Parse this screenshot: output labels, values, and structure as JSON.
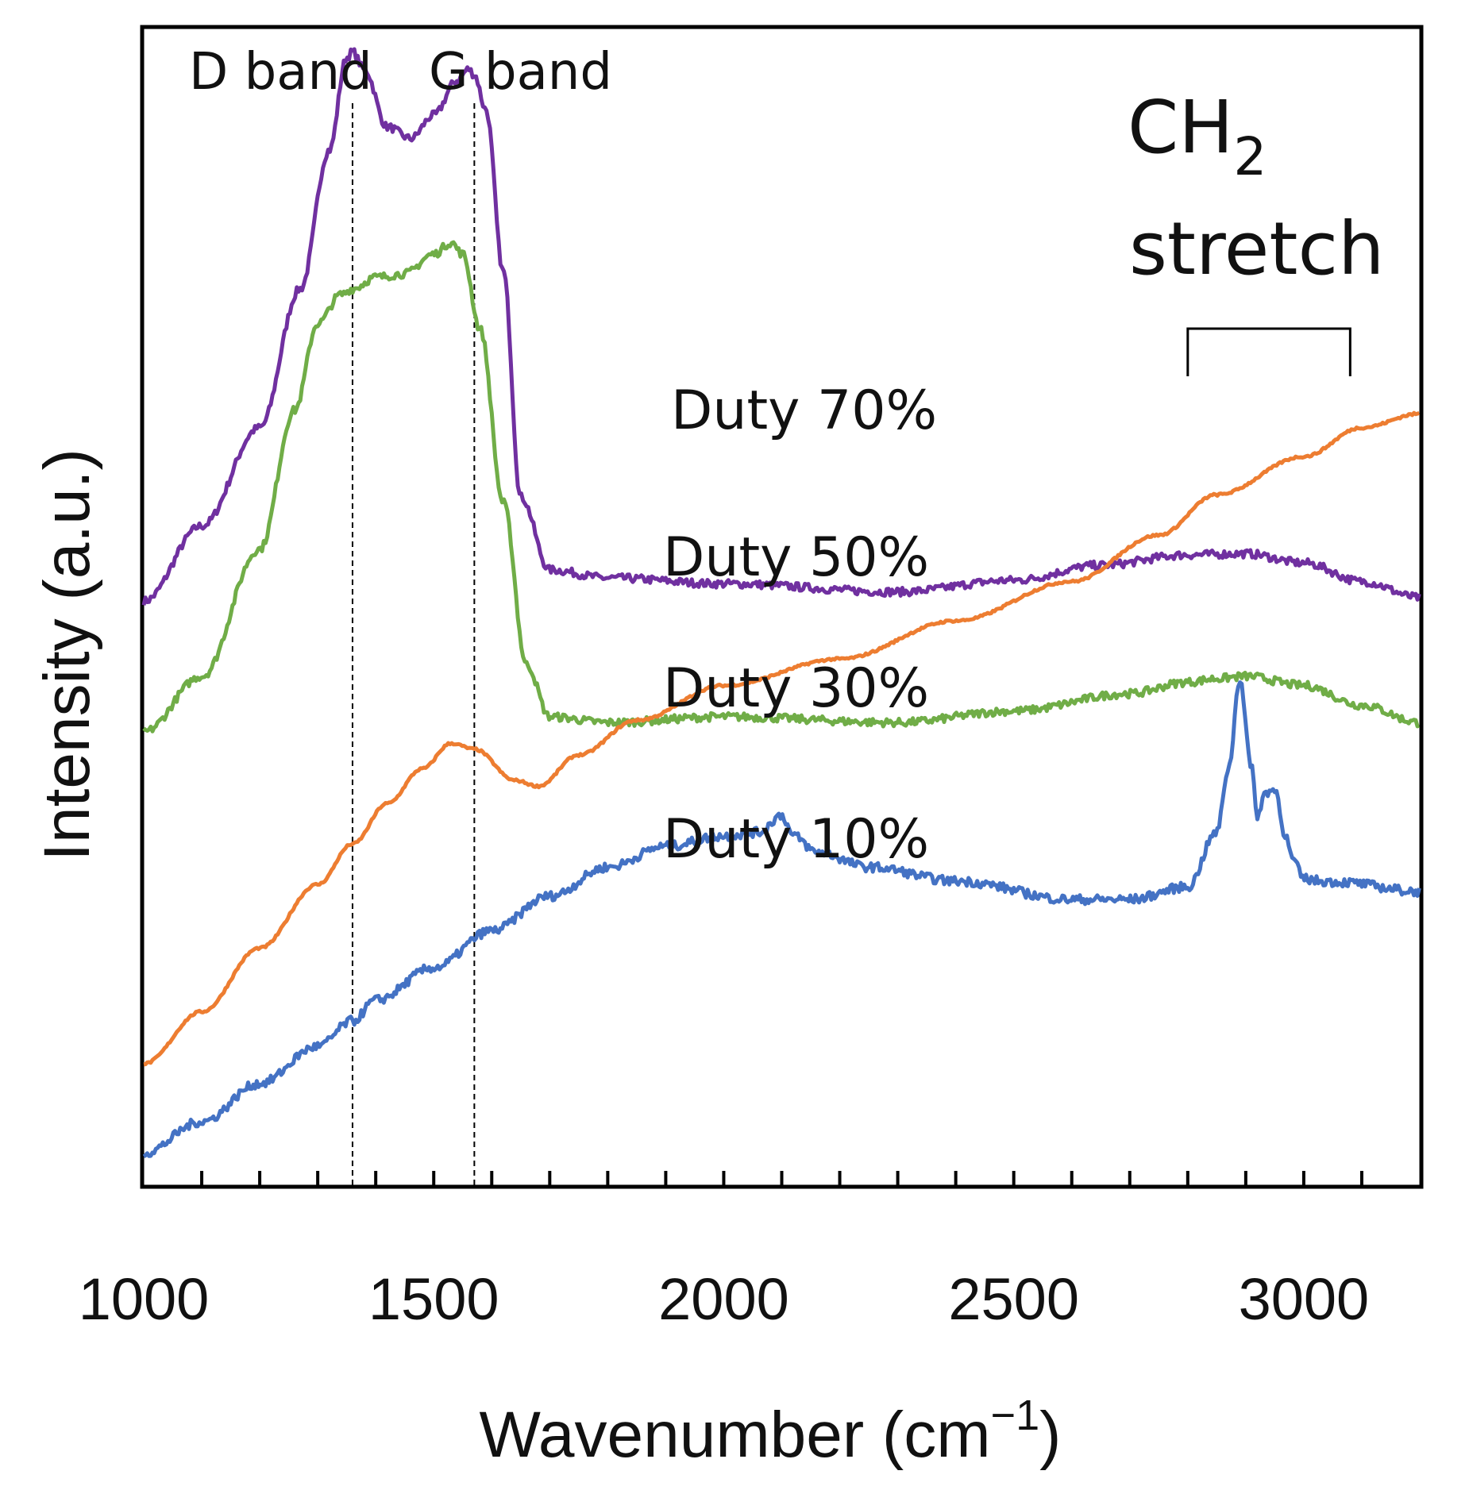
{
  "chart_data": {
    "type": "line",
    "title": "",
    "xlabel": "Wavenumber (cm",
    "xlabel_unit_sup": "−1",
    "xlabel_close": ")",
    "ylabel": "Intensity (a.u.)",
    "xlim": [
      1000,
      3200
    ],
    "ylim": [
      0,
      10
    ],
    "y_ticks_visible": false,
    "x_major_ticks": [
      1000,
      1500,
      2000,
      2500,
      3000
    ],
    "x_tick_labels": [
      "1000",
      "1500",
      "2000",
      "2500",
      "3000"
    ],
    "x_minor_tick_step": 100,
    "grid": false,
    "legend": "none",
    "reference_lines": [
      {
        "label": "D band",
        "x": 1360
      },
      {
        "label": "G band",
        "x": 1570
      }
    ],
    "bracket_annotation": {
      "main": "CH",
      "sub": "2",
      "line2": "stretch",
      "x_range": [
        2800,
        3080
      ]
    },
    "series": [
      {
        "name": "Duty 70%",
        "label": "Duty 70%",
        "color": "#7030A0",
        "x": [
          1000,
          1100,
          1200,
          1270,
          1320,
          1350,
          1360,
          1380,
          1420,
          1460,
          1500,
          1540,
          1560,
          1570,
          1590,
          1620,
          1650,
          1700,
          1800,
          2000,
          2300,
          2500,
          2650,
          2800,
          2900,
          3000,
          3100,
          3200
        ],
        "y": [
          5.05,
          5.7,
          6.55,
          7.75,
          8.95,
          9.75,
          9.8,
          9.65,
          9.15,
          9.05,
          9.25,
          9.55,
          9.65,
          9.6,
          9.3,
          7.9,
          5.95,
          5.32,
          5.25,
          5.2,
          5.13,
          5.23,
          5.36,
          5.45,
          5.46,
          5.38,
          5.22,
          5.08
        ]
      },
      {
        "name": "Duty 50%",
        "label": "Duty 50%",
        "color": "#70AD47",
        "x": [
          1000,
          1100,
          1200,
          1260,
          1300,
          1340,
          1360,
          1400,
          1450,
          1500,
          1530,
          1550,
          1580,
          1620,
          1660,
          1700,
          1800,
          2000,
          2300,
          2500,
          2700,
          2800,
          2850,
          2900,
          3000,
          3100,
          3200
        ],
        "y": [
          3.92,
          4.4,
          5.5,
          6.7,
          7.45,
          7.7,
          7.75,
          7.85,
          7.88,
          8.05,
          8.15,
          8.05,
          7.4,
          5.9,
          4.5,
          4.05,
          4.0,
          4.05,
          4.0,
          4.1,
          4.25,
          4.35,
          4.38,
          4.4,
          4.32,
          4.15,
          4.0
        ]
      },
      {
        "name": "Duty 30%",
        "label": "Duty 30%",
        "color": "#ED7D31",
        "x": [
          1000,
          1100,
          1200,
          1300,
          1360,
          1420,
          1480,
          1530,
          1570,
          1640,
          1680,
          1750,
          1850,
          2000,
          2200,
          2400,
          2600,
          2750,
          2850,
          3000,
          3100,
          3200
        ],
        "y": [
          1.05,
          1.5,
          2.05,
          2.6,
          2.95,
          3.3,
          3.6,
          3.82,
          3.77,
          3.5,
          3.45,
          3.72,
          4.02,
          4.32,
          4.55,
          4.88,
          5.22,
          5.62,
          5.97,
          6.3,
          6.55,
          6.67
        ]
      },
      {
        "name": "Duty 10%",
        "label": "Duty 10%",
        "color": "#4472C4",
        "x": [
          1000,
          1100,
          1200,
          1300,
          1360,
          1400,
          1500,
          1600,
          1700,
          1800,
          1900,
          2000,
          2060,
          2100,
          2120,
          2160,
          2250,
          2400,
          2600,
          2700,
          2800,
          2850,
          2870,
          2890,
          2910,
          2920,
          2935,
          2950,
          2970,
          2980,
          3000,
          3030,
          3060,
          3200
        ],
        "y": [
          0.28,
          0.55,
          0.88,
          1.2,
          1.42,
          1.6,
          1.88,
          2.2,
          2.5,
          2.75,
          2.93,
          3.02,
          3.05,
          3.2,
          3.02,
          2.88,
          2.75,
          2.63,
          2.47,
          2.47,
          2.58,
          3.05,
          3.6,
          4.38,
          3.6,
          3.2,
          3.4,
          3.42,
          3.0,
          2.82,
          2.65,
          2.63,
          2.62,
          2.54
        ]
      }
    ]
  }
}
